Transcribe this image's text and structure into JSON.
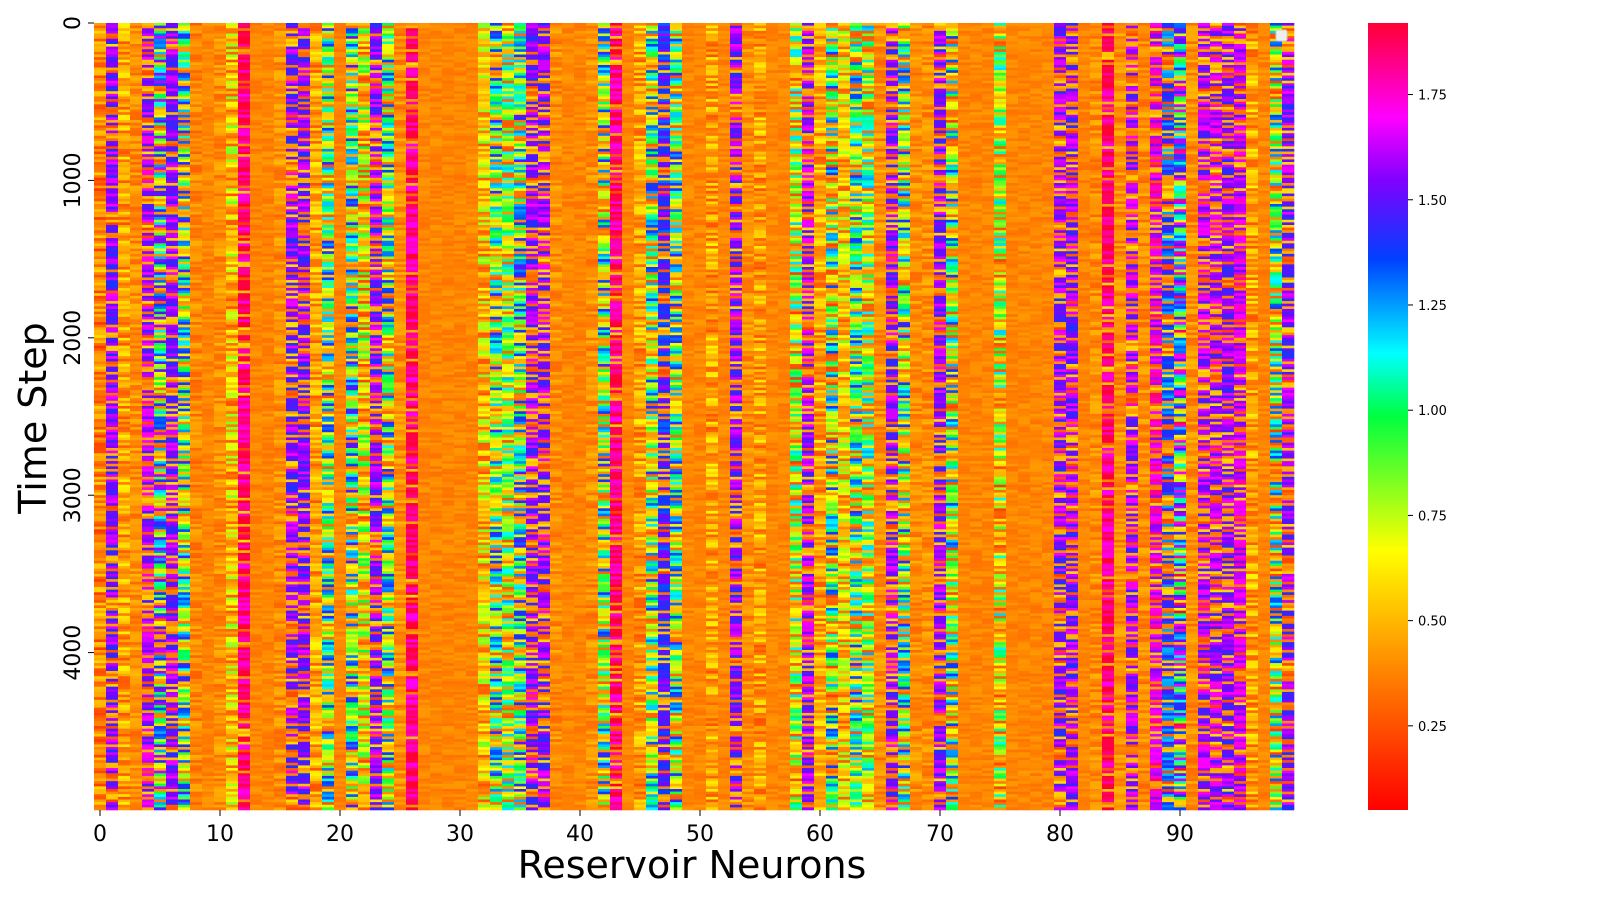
{
  "chart_data": {
    "type": "heatmap",
    "title": "",
    "xlabel": "Reservoir Neurons",
    "ylabel": "Time Step",
    "x_count": 100,
    "y_count": 5000,
    "xlim": [
      0,
      100
    ],
    "ylim": [
      0,
      5000
    ],
    "y_inverted": true,
    "x_ticks": [
      "0",
      "10",
      "20",
      "30",
      "40",
      "50",
      "60",
      "70",
      "80",
      "90"
    ],
    "x_tick_values": [
      0,
      10,
      20,
      30,
      40,
      50,
      60,
      70,
      80,
      90
    ],
    "y_ticks": [
      "0",
      "1000",
      "2000",
      "3000",
      "4000"
    ],
    "y_tick_values": [
      0,
      1000,
      2000,
      3000,
      4000
    ],
    "colorbar": {
      "colormap": "gist_rainbow_r",
      "vmin": 0.05,
      "vmax": 1.92,
      "ticks": [
        "0.25",
        "0.50",
        "0.75",
        "1.00",
        "1.25",
        "1.50",
        "1.75"
      ],
      "tick_values": [
        0.25,
        0.5,
        0.75,
        1.0,
        1.25,
        1.5,
        1.75
      ]
    },
    "neuron_mean_values": [
      0.38,
      1.55,
      0.45,
      0.4,
      1.6,
      0.95,
      1.55,
      0.9,
      0.38,
      0.38,
      0.4,
      0.55,
      1.85,
      0.38,
      0.38,
      0.4,
      1.55,
      1.55,
      0.45,
      0.85,
      0.38,
      0.9,
      0.6,
      1.55,
      0.85,
      0.4,
      1.85,
      0.38,
      0.38,
      0.38,
      0.38,
      0.38,
      0.55,
      0.85,
      0.75,
      0.9,
      1.55,
      1.55,
      0.4,
      0.38,
      0.38,
      0.4,
      0.85,
      1.85,
      0.38,
      0.45,
      0.85,
      1.45,
      0.85,
      0.38,
      0.38,
      0.45,
      0.38,
      1.55,
      0.4,
      0.45,
      0.38,
      0.38,
      0.7,
      1.6,
      0.45,
      0.8,
      0.55,
      0.85,
      0.75,
      0.4,
      1.55,
      0.85,
      0.4,
      0.4,
      1.55,
      0.8,
      0.38,
      0.38,
      0.38,
      0.7,
      0.38,
      0.38,
      0.38,
      0.38,
      1.55,
      1.55,
      0.38,
      0.4,
      1.85,
      0.4,
      1.6,
      0.4,
      1.7,
      1.35,
      1.2,
      0.4,
      1.6,
      1.6,
      1.55,
      1.65,
      0.45,
      0.38,
      0.8,
      1.55
    ],
    "neuron_variation": [
      0.2,
      0.5,
      0.2,
      0.1,
      0.6,
      0.7,
      0.6,
      0.6,
      0.1,
      0.05,
      0.1,
      0.3,
      0.3,
      0.05,
      0.05,
      0.1,
      0.6,
      0.6,
      0.2,
      0.6,
      0.05,
      0.6,
      0.4,
      0.6,
      0.6,
      0.1,
      0.3,
      0.05,
      0.05,
      0.05,
      0.05,
      0.05,
      0.3,
      0.6,
      0.5,
      0.6,
      0.6,
      0.6,
      0.1,
      0.05,
      0.05,
      0.1,
      0.6,
      0.3,
      0.05,
      0.2,
      0.6,
      0.6,
      0.6,
      0.05,
      0.05,
      0.2,
      0.05,
      0.6,
      0.1,
      0.2,
      0.05,
      0.05,
      0.5,
      0.6,
      0.2,
      0.6,
      0.3,
      0.6,
      0.5,
      0.1,
      0.6,
      0.6,
      0.1,
      0.1,
      0.6,
      0.6,
      0.05,
      0.05,
      0.05,
      0.5,
      0.05,
      0.05,
      0.05,
      0.05,
      0.6,
      0.6,
      0.05,
      0.1,
      0.3,
      0.1,
      0.6,
      0.1,
      0.6,
      0.7,
      0.7,
      0.1,
      0.6,
      0.6,
      0.6,
      0.5,
      0.2,
      0.05,
      0.6,
      0.6
    ],
    "legend": "none",
    "grid": false
  }
}
